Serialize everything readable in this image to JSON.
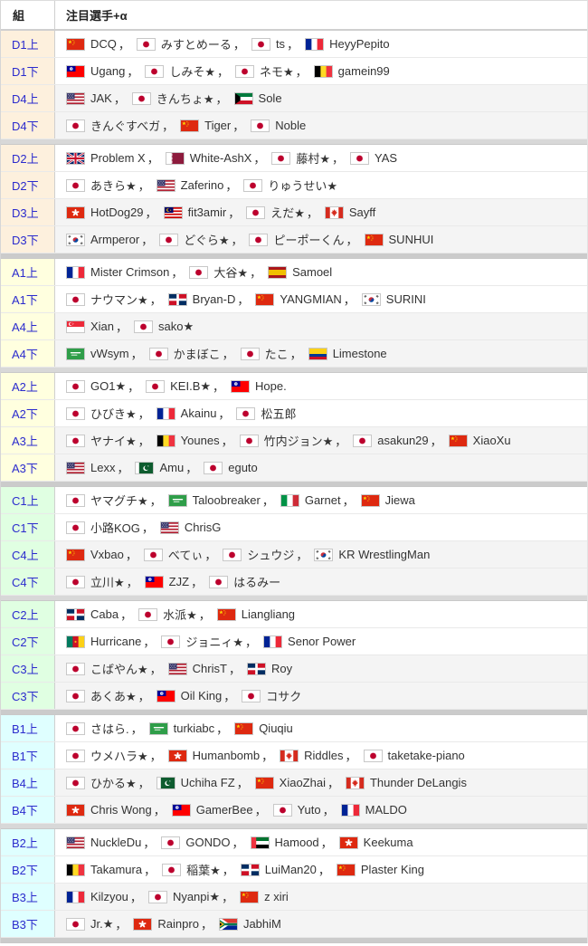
{
  "header": {
    "col_group": "組",
    "col_players": "注目選手+α"
  },
  "punctuation": {
    "player_separator": "，"
  },
  "colors": {
    "group_label_text": "#2b2bcd",
    "player_text": "#333333",
    "stripe_row_bg": "#f4f4f4",
    "separator_mid_bg": "#d8d8d8",
    "separator_section_bg": "#cbcbcb",
    "section_label_bg": {
      "D": "#fdf0dd",
      "A": "#ffffdf",
      "C": "#e0ffe2",
      "B": "#dfffff"
    }
  },
  "flags": {
    "jp": "japan",
    "cn": "china",
    "fr": "france",
    "tw": "taiwan",
    "be": "belgium",
    "us": "united-states",
    "kw": "kuwait",
    "gb": "united-kingdom",
    "qa": "qatar",
    "hk": "hong-kong",
    "my": "malaysia",
    "ca": "canada",
    "kr": "south-korea",
    "es": "spain",
    "do": "dominican-republic",
    "sg": "singapore",
    "sa": "saudi-arabia",
    "co": "colombia",
    "pk": "pakistan",
    "it": "italy",
    "cm": "cameroon",
    "ae": "united-arab-emirates",
    "za": "south-africa"
  },
  "rows": [
    {
      "group": "D1上",
      "section": "D",
      "players": [
        {
          "flag": "cn",
          "name": "DCQ"
        },
        {
          "flag": "jp",
          "name": "みすとめーる"
        },
        {
          "flag": "jp",
          "name": "ts"
        },
        {
          "flag": "fr",
          "name": "HeyyPepito"
        }
      ]
    },
    {
      "group": "D1下",
      "section": "D",
      "players": [
        {
          "flag": "tw",
          "name": "Ugang"
        },
        {
          "flag": "jp",
          "name": "しみそ★"
        },
        {
          "flag": "jp",
          "name": "ネモ★"
        },
        {
          "flag": "be",
          "name": "gamein99"
        }
      ]
    },
    {
      "group": "D4上",
      "section": "D",
      "players": [
        {
          "flag": "us",
          "name": "JAK"
        },
        {
          "flag": "jp",
          "name": "きんちょ★"
        },
        {
          "flag": "kw",
          "name": "Sole"
        }
      ]
    },
    {
      "group": "D4下",
      "section": "D",
      "players": [
        {
          "flag": "jp",
          "name": "きんぐすべガ"
        },
        {
          "flag": "cn",
          "name": "Tiger"
        },
        {
          "flag": "jp",
          "name": "Noble"
        }
      ]
    },
    {
      "group": "D2上",
      "section": "D",
      "players": [
        {
          "flag": "gb",
          "name": "Problem X"
        },
        {
          "flag": "qa",
          "name": "White-AshX"
        },
        {
          "flag": "jp",
          "name": "藤村★"
        },
        {
          "flag": "jp",
          "name": "YAS"
        }
      ]
    },
    {
      "group": "D2下",
      "section": "D",
      "players": [
        {
          "flag": "jp",
          "name": "あきら★"
        },
        {
          "flag": "us",
          "name": "Zaferino"
        },
        {
          "flag": "jp",
          "name": "りゅうせい★"
        }
      ]
    },
    {
      "group": "D3上",
      "section": "D",
      "players": [
        {
          "flag": "hk",
          "name": "HotDog29"
        },
        {
          "flag": "my",
          "name": "fit3amir"
        },
        {
          "flag": "jp",
          "name": "えだ★"
        },
        {
          "flag": "ca",
          "name": "Sayff"
        }
      ]
    },
    {
      "group": "D3下",
      "section": "D",
      "players": [
        {
          "flag": "kr",
          "name": "Armperor"
        },
        {
          "flag": "jp",
          "name": "どぐら★"
        },
        {
          "flag": "jp",
          "name": "ピーポーくん"
        },
        {
          "flag": "cn",
          "name": "SUNHUI"
        }
      ]
    },
    {
      "group": "A1上",
      "section": "A",
      "players": [
        {
          "flag": "fr",
          "name": "Mister Crimson"
        },
        {
          "flag": "jp",
          "name": "大谷★"
        },
        {
          "flag": "es",
          "name": "Samoel"
        }
      ]
    },
    {
      "group": "A1下",
      "section": "A",
      "players": [
        {
          "flag": "jp",
          "name": "ナウマン★"
        },
        {
          "flag": "do",
          "name": "Bryan-D"
        },
        {
          "flag": "cn",
          "name": "YANGMIAN"
        },
        {
          "flag": "kr",
          "name": "SURINI"
        }
      ]
    },
    {
      "group": "A4上",
      "section": "A",
      "players": [
        {
          "flag": "sg",
          "name": "Xian"
        },
        {
          "flag": "jp",
          "name": "sako★"
        }
      ]
    },
    {
      "group": "A4下",
      "section": "A",
      "players": [
        {
          "flag": "sa",
          "name": "vWsym"
        },
        {
          "flag": "jp",
          "name": "かまぼこ"
        },
        {
          "flag": "jp",
          "name": "たこ"
        },
        {
          "flag": "co",
          "name": "Limestone"
        }
      ]
    },
    {
      "group": "A2上",
      "section": "A",
      "players": [
        {
          "flag": "jp",
          "name": "GO1★"
        },
        {
          "flag": "jp",
          "name": "KEI.B★"
        },
        {
          "flag": "tw",
          "name": "Hope."
        }
      ]
    },
    {
      "group": "A2下",
      "section": "A",
      "players": [
        {
          "flag": "jp",
          "name": "ひびき★"
        },
        {
          "flag": "fr",
          "name": "Akainu"
        },
        {
          "flag": "jp",
          "name": "松五郎"
        }
      ]
    },
    {
      "group": "A3上",
      "section": "A",
      "players": [
        {
          "flag": "jp",
          "name": "ヤナイ★"
        },
        {
          "flag": "be",
          "name": "Younes"
        },
        {
          "flag": "jp",
          "name": "竹内ジョン★"
        },
        {
          "flag": "jp",
          "name": "asakun29"
        },
        {
          "flag": "cn",
          "name": "XiaoXu"
        }
      ]
    },
    {
      "group": "A3下",
      "section": "A",
      "players": [
        {
          "flag": "us",
          "name": "Lexx"
        },
        {
          "flag": "pk",
          "name": "Amu"
        },
        {
          "flag": "jp",
          "name": "eguto"
        }
      ]
    },
    {
      "group": "C1上",
      "section": "C",
      "players": [
        {
          "flag": "jp",
          "name": "ヤマグチ★"
        },
        {
          "flag": "sa",
          "name": "Taloobreaker"
        },
        {
          "flag": "it",
          "name": "Garnet"
        },
        {
          "flag": "cn",
          "name": "Jiewa"
        }
      ]
    },
    {
      "group": "C1下",
      "section": "C",
      "players": [
        {
          "flag": "jp",
          "name": "小路KOG"
        },
        {
          "flag": "us",
          "name": "ChrisG"
        }
      ]
    },
    {
      "group": "C4上",
      "section": "C",
      "players": [
        {
          "flag": "cn",
          "name": "Vxbao"
        },
        {
          "flag": "jp",
          "name": "べてぃ"
        },
        {
          "flag": "jp",
          "name": "シュウジ"
        },
        {
          "flag": "kr",
          "name": "KR WrestlingMan"
        }
      ]
    },
    {
      "group": "C4下",
      "section": "C",
      "players": [
        {
          "flag": "jp",
          "name": "立川★"
        },
        {
          "flag": "tw",
          "name": "ZJZ"
        },
        {
          "flag": "jp",
          "name": "はるみー"
        }
      ]
    },
    {
      "group": "C2上",
      "section": "C",
      "players": [
        {
          "flag": "do",
          "name": "Caba"
        },
        {
          "flag": "jp",
          "name": "水派★"
        },
        {
          "flag": "cn",
          "name": "Liangliang"
        }
      ]
    },
    {
      "group": "C2下",
      "section": "C",
      "players": [
        {
          "flag": "cm",
          "name": "Hurricane"
        },
        {
          "flag": "jp",
          "name": "ジョニィ★"
        },
        {
          "flag": "fr",
          "name": "Senor Power"
        }
      ]
    },
    {
      "group": "C3上",
      "section": "C",
      "players": [
        {
          "flag": "jp",
          "name": "こばやん★"
        },
        {
          "flag": "us",
          "name": "ChrisT"
        },
        {
          "flag": "do",
          "name": "Roy"
        }
      ]
    },
    {
      "group": "C3下",
      "section": "C",
      "players": [
        {
          "flag": "jp",
          "name": "あくあ★"
        },
        {
          "flag": "tw",
          "name": "Oil King"
        },
        {
          "flag": "jp",
          "name": "コサク"
        }
      ]
    },
    {
      "group": "B1上",
      "section": "B",
      "players": [
        {
          "flag": "jp",
          "name": "さはら."
        },
        {
          "flag": "sa",
          "name": "turkiabc"
        },
        {
          "flag": "cn",
          "name": "Qiuqiu"
        }
      ]
    },
    {
      "group": "B1下",
      "section": "B",
      "players": [
        {
          "flag": "jp",
          "name": "ウメハラ★"
        },
        {
          "flag": "hk",
          "name": "Humanbomb"
        },
        {
          "flag": "ca",
          "name": "Riddles"
        },
        {
          "flag": "jp",
          "name": "taketake-piano"
        }
      ]
    },
    {
      "group": "B4上",
      "section": "B",
      "players": [
        {
          "flag": "jp",
          "name": "ひかる★"
        },
        {
          "flag": "pk",
          "name": "Uchiha FZ"
        },
        {
          "flag": "cn",
          "name": "XiaoZhai"
        },
        {
          "flag": "ca",
          "name": "Thunder DeLangis"
        }
      ]
    },
    {
      "group": "B4下",
      "section": "B",
      "players": [
        {
          "flag": "hk",
          "name": "Chris Wong"
        },
        {
          "flag": "tw",
          "name": "GamerBee"
        },
        {
          "flag": "jp",
          "name": "Yuto"
        },
        {
          "flag": "fr",
          "name": "MALDO"
        }
      ]
    },
    {
      "group": "B2上",
      "section": "B",
      "players": [
        {
          "flag": "us",
          "name": "NuckleDu"
        },
        {
          "flag": "jp",
          "name": "GONDO"
        },
        {
          "flag": "ae",
          "name": "Hamood"
        },
        {
          "flag": "hk",
          "name": "Keekuma"
        }
      ]
    },
    {
      "group": "B2下",
      "section": "B",
      "players": [
        {
          "flag": "be",
          "name": "Takamura"
        },
        {
          "flag": "jp",
          "name": "稲葉★"
        },
        {
          "flag": "do",
          "name": "LuiMan20"
        },
        {
          "flag": "cn",
          "name": "Plaster King"
        }
      ]
    },
    {
      "group": "B3上",
      "section": "B",
      "players": [
        {
          "flag": "fr",
          "name": "Kilzyou"
        },
        {
          "flag": "jp",
          "name": "Nyanpi★"
        },
        {
          "flag": "cn",
          "name": "z xiri"
        }
      ]
    },
    {
      "group": "B3下",
      "section": "B",
      "players": [
        {
          "flag": "jp",
          "name": "Jr.★"
        },
        {
          "flag": "hk",
          "name": "Rainpro"
        },
        {
          "flag": "za",
          "name": "JabhiM"
        }
      ]
    }
  ]
}
